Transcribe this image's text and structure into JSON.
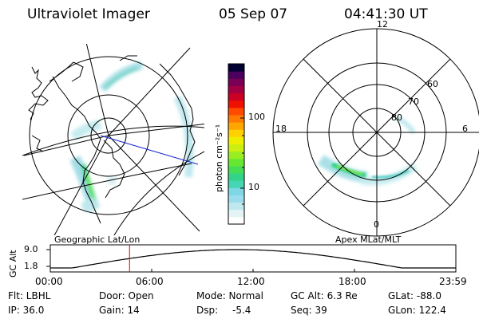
{
  "header": {
    "instrument": "Ultraviolet Imager",
    "date": "05 Sep 07",
    "time": "04:41:30 UT"
  },
  "colorbar": {
    "label": "photon cm⁻²s⁻¹",
    "ticks": [
      "100",
      "10"
    ],
    "colors": [
      "#ffffff",
      "#e4f4f4",
      "#bfe8ee",
      "#9bdcec",
      "#7fd6e4",
      "#46d6b4",
      "#33d38a",
      "#44dd55",
      "#66e833",
      "#99ee22",
      "#ccee11",
      "#eeee00",
      "#ffd100",
      "#ffa500",
      "#ff7a00",
      "#ff4a00",
      "#ee1100",
      "#cc0022",
      "#a30044",
      "#7a0055",
      "#4a005c",
      "#000033"
    ]
  },
  "geo_panel": {
    "label": "Geographic Lat/Lon"
  },
  "apex_panel": {
    "label": "Apex MLat/MLT",
    "mlt_labels": {
      "top": "12",
      "left": "18",
      "right": "6",
      "bottom": "0"
    },
    "lat_labels": [
      "60",
      "70",
      "80"
    ]
  },
  "altitude_plot": {
    "ylabel": "GC Alt",
    "yticks": [
      "9.0",
      "1.8"
    ],
    "xticks": [
      "00:00",
      "06:00",
      "12:00",
      "18:00",
      "23:59"
    ],
    "marker_time_hours": 4.69
  },
  "info": {
    "flt": "Flt: LBHL",
    "ip": "IP: 36.0",
    "door": "Door: Open",
    "gain": "Gain: 14",
    "mode": "Mode: Normal",
    "dsp_label": "Dsp:",
    "dsp_value": "-5.4",
    "gcalt": "GC Alt: 6.3 Re",
    "seq": "Seq: 39",
    "glat": "GLat: -88.0",
    "glon": "GLon: 122.4"
  }
}
